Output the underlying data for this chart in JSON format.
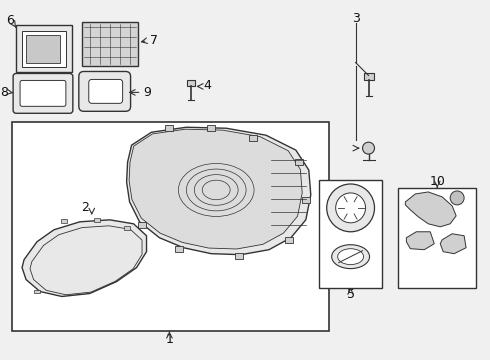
{
  "bg_color": "#f0f0f0",
  "line_color": "#333333",
  "text_color": "#111111",
  "white": "#ffffff",
  "light_gray": "#e8e8e8",
  "mid_gray": "#d0d0d0",
  "dark_gray": "#aaaaaa"
}
